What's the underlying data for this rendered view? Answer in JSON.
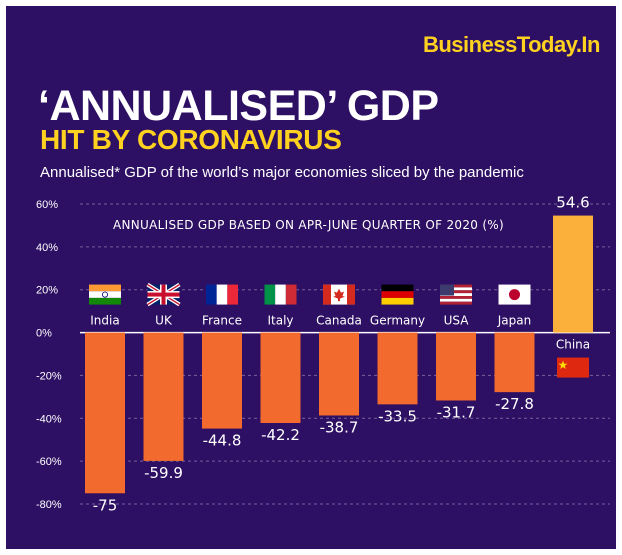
{
  "header": {
    "brand": "BusinessToday.In",
    "title_line1": "‘ANNUALISED’ GDP",
    "title_line2": "HIT BY CORONAVIRUS",
    "subtitle": "Annualised* GDP of the world’s major economies sliced by the pandemic"
  },
  "colors": {
    "background": "#2d0f63",
    "negative_bar": "#f26a2e",
    "positive_bar": "#fbb03b",
    "accent": "#ffd21f"
  },
  "chart_data": {
    "type": "bar",
    "title": "ANNUALISED GDP BASED ON APR-JUNE QUARTER OF 2020 (%)",
    "categories": [
      "India",
      "UK",
      "France",
      "Italy",
      "Canada",
      "Germany",
      "USA",
      "Japan",
      "China"
    ],
    "values": [
      -75,
      -59.9,
      -44.8,
      -42.2,
      -38.7,
      -33.5,
      -31.7,
      -27.8,
      54.6
    ],
    "value_labels": [
      "-75",
      "-59.9",
      "-44.8",
      "-42.2",
      "-38.7",
      "-33.5",
      "-31.7",
      "-27.8",
      "54.6"
    ],
    "flags": [
      "india-flag",
      "uk-flag",
      "france-flag",
      "italy-flag",
      "canada-flag",
      "germany-flag",
      "usa-flag",
      "japan-flag",
      "china-flag"
    ],
    "y_ticks": [
      60,
      40,
      20,
      0,
      -20,
      -40,
      -60,
      -80
    ],
    "y_tick_labels": [
      "60%",
      "40%",
      "20%",
      "0%",
      "-20%",
      "-40%",
      "-60%",
      "-80%"
    ],
    "ylim": [
      -80,
      60
    ],
    "grid": true
  }
}
